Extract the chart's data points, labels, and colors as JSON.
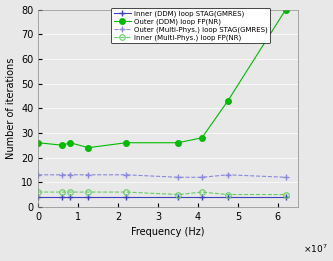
{
  "x_freq": [
    0,
    6000000.0,
    8000000.0,
    12500000.0,
    22000000.0,
    35000000.0,
    41000000.0,
    47500000.0,
    62000000.0
  ],
  "series1_y": [
    4,
    4,
    4,
    4,
    4,
    4,
    4,
    4,
    4
  ],
  "series2_y": [
    26,
    25,
    26,
    24,
    26,
    26,
    28,
    43,
    80
  ],
  "series3_y": [
    13,
    13,
    13,
    13,
    13,
    12,
    12,
    13,
    12
  ],
  "series4_y": [
    6,
    6,
    6,
    6,
    6,
    5,
    6,
    5,
    5
  ],
  "series1_color": "#4040bb",
  "series2_color": "#00bb00",
  "series3_color": "#8888dd",
  "series4_color": "#66cc66",
  "series1_label": "Inner (DDM) loop STAG(GMRES)",
  "series2_label": "Outer (DDM) loop FP(NR)",
  "series3_label": "Outer (Multi-Phys.) loop STAG(GMRES)",
  "series4_label": "Inner (Multi-Phys.) loop FP(NR)",
  "xlabel": "Frequency (Hz)",
  "ylabel": "Number of iterations",
  "xlim": [
    0,
    65000000.0
  ],
  "ylim": [
    0,
    80
  ],
  "yticks": [
    0,
    10,
    20,
    30,
    40,
    50,
    60,
    70,
    80
  ],
  "xticks": [
    0,
    10000000.0,
    20000000.0,
    30000000.0,
    40000000.0,
    50000000.0,
    60000000.0
  ],
  "xtick_labels": [
    "0",
    "1",
    "2",
    "3",
    "4",
    "5",
    "6"
  ],
  "bg_color": "#e8e8e8"
}
